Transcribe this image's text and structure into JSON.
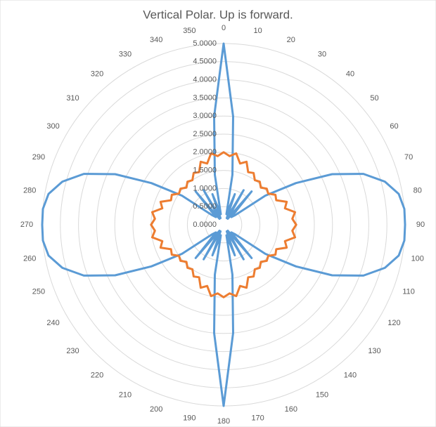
{
  "chart_data": {
    "type": "radar",
    "title": "Vertical Polar.  Up is forward.",
    "categories": [
      "0",
      null,
      "10",
      null,
      "20",
      null,
      "30",
      null,
      "40",
      null,
      "50",
      null,
      "60",
      null,
      "70",
      null,
      "80",
      null,
      "90",
      null,
      "100",
      null,
      "110",
      null,
      "120",
      null,
      "130",
      null,
      "140",
      null,
      "150",
      null,
      "160",
      null,
      "170",
      null,
      "180",
      null,
      "190",
      null,
      "200",
      null,
      "210",
      null,
      "220",
      null,
      "230",
      null,
      "240",
      null,
      "250",
      null,
      "260",
      null,
      "270",
      null,
      "280",
      null,
      "290",
      null,
      "300",
      null,
      "310",
      null,
      "320",
      null,
      "330",
      null,
      "340",
      null,
      "350",
      null
    ],
    "series": [
      {
        "color": "#5b9bd5",
        "values": [
          5.0,
          3.0,
          1.4,
          0.3,
          0.9,
          0.2,
          1.1,
          0.2,
          1.2,
          0.3,
          0.4,
          1.4,
          2.3,
          3.3,
          4.1,
          4.6,
          4.9,
          5.0,
          5.0,
          5.0,
          4.9,
          4.6,
          4.1,
          3.3,
          2.3,
          1.4,
          0.4,
          0.3,
          1.2,
          0.2,
          1.1,
          0.2,
          0.9,
          0.3,
          1.4,
          3.0,
          5.0,
          3.0,
          1.4,
          0.3,
          0.9,
          0.2,
          1.1,
          0.2,
          1.2,
          0.3,
          0.4,
          1.4,
          2.3,
          3.3,
          4.1,
          4.6,
          4.9,
          5.0,
          5.0,
          5.0,
          4.9,
          4.6,
          4.1,
          3.3,
          2.3,
          1.4,
          0.4,
          0.3,
          1.2,
          0.2,
          1.1,
          0.2,
          0.9,
          0.3,
          1.4,
          3.0
        ]
      },
      {
        "color": "#ed7d31",
        "values": [
          2.0,
          1.9,
          2.0,
          1.75,
          1.85,
          1.6,
          1.65,
          1.5,
          1.55,
          1.45,
          1.55,
          1.5,
          1.65,
          1.6,
          1.85,
          1.75,
          2.0,
          1.9,
          2.0,
          1.9,
          2.0,
          1.75,
          1.85,
          1.6,
          1.65,
          1.5,
          1.55,
          1.45,
          1.55,
          1.5,
          1.65,
          1.6,
          1.85,
          1.75,
          2.0,
          1.9,
          2.0,
          1.9,
          2.0,
          1.75,
          1.85,
          1.6,
          1.65,
          1.5,
          1.55,
          1.45,
          1.55,
          1.5,
          1.65,
          1.6,
          1.85,
          1.75,
          2.0,
          1.9,
          2.0,
          1.9,
          2.0,
          1.75,
          1.85,
          1.6,
          1.65,
          1.5,
          1.55,
          1.45,
          1.55,
          1.5,
          1.65,
          1.6,
          1.85,
          1.75,
          2.0,
          1.9
        ]
      }
    ],
    "ylim": [
      0,
      5
    ],
    "yticks": [
      {
        "value": 0,
        "label": "0.0000"
      },
      {
        "value": 0.5,
        "label": "0.5000"
      },
      {
        "value": 1,
        "label": "1.0000"
      },
      {
        "value": 1.5,
        "label": "1.5000"
      },
      {
        "value": 2,
        "label": "2.0000"
      },
      {
        "value": 2.5,
        "label": "2.5000"
      },
      {
        "value": 3,
        "label": "3.0000"
      },
      {
        "value": 3.5,
        "label": "3.5000"
      },
      {
        "value": 4,
        "label": "4.0000"
      },
      {
        "value": 4.5,
        "label": "4.5000"
      },
      {
        "value": 5,
        "label": "5.0000"
      }
    ],
    "grid": true
  }
}
